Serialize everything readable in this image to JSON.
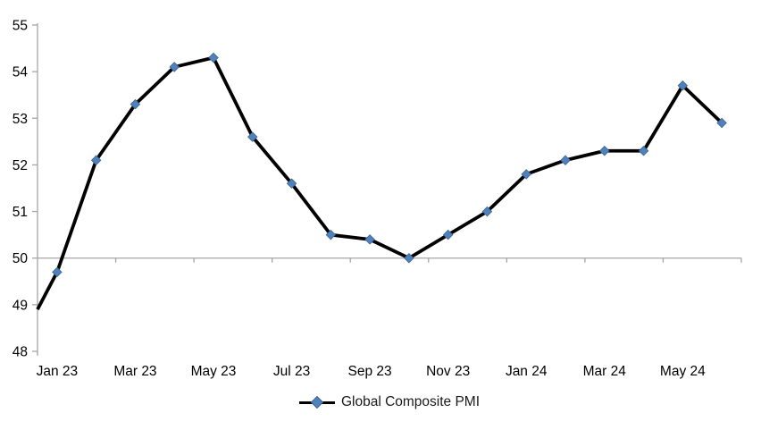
{
  "chart_data": {
    "type": "line",
    "title": "",
    "legend_label": "Global Composite PMI",
    "legend_position": "bottom-center",
    "x": [
      "Jan 23",
      "Feb 23",
      "Mar 23",
      "Apr 23",
      "May 23",
      "Jun 23",
      "Jul 23",
      "Aug 23",
      "Sep 23",
      "Oct 23",
      "Nov 23",
      "Dec 23",
      "Jan 24",
      "Feb 24",
      "Mar 24",
      "Apr 24",
      "May 24",
      "Jun 24"
    ],
    "values": [
      49.7,
      52.1,
      53.3,
      54.1,
      54.3,
      52.6,
      51.6,
      50.5,
      50.4,
      50.0,
      50.5,
      51.0,
      51.8,
      52.1,
      52.3,
      52.3,
      53.7,
      52.9
    ],
    "x_tick_labels_shown": [
      "Jan 23",
      "Mar 23",
      "May 23",
      "Jul 23",
      "Sep 23",
      "Nov 23",
      "Jan 24",
      "Mar 24",
      "May 24"
    ],
    "x_label_interval": 2,
    "ylim": [
      48,
      55
    ],
    "y_ticks": [
      48,
      49,
      50,
      51,
      52,
      53,
      54,
      55
    ],
    "x_axis_crosses_at": 50,
    "clipped_entry_value_at_left_axis": 48.9,
    "grid": "none (only horizontal category-axis line at value 50)",
    "marker_shape": "diamond",
    "colors": {
      "series_line": "#000000",
      "marker_fill": "#4f81bd",
      "marker_border": "#3d6591",
      "axis_line": "#a6a6a6",
      "label_text": "#000000"
    }
  }
}
